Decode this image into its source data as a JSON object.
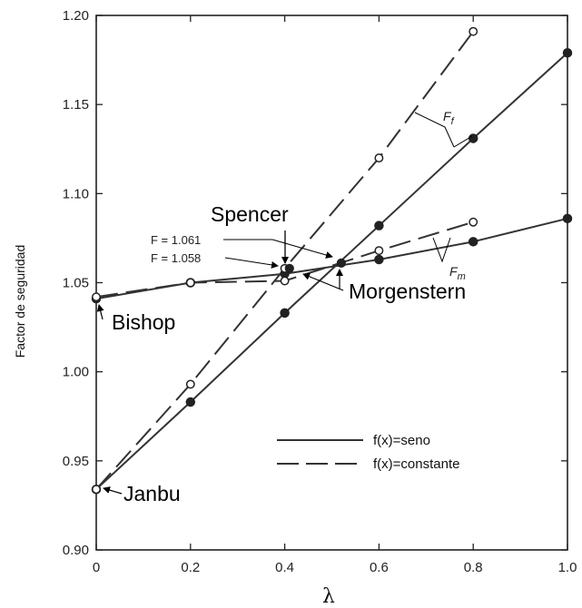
{
  "chart_data": {
    "type": "line",
    "title": "",
    "xlabel": "λ",
    "ylabel": "Factor de seguridad",
    "xlim": [
      0,
      1.0
    ],
    "ylim": [
      0.9,
      1.2
    ],
    "x_ticks": [
      "0",
      "0.2",
      "0.4",
      "0.6",
      "0.8",
      "1.0"
    ],
    "y_ticks": [
      "0.90",
      "0.95",
      "1.00",
      "1.05",
      "1.10",
      "1.15",
      "1.20"
    ],
    "grid": false,
    "legend_position": "lower-right",
    "series": [
      {
        "name": "f(x)=seno",
        "style": "solid",
        "marker": "filled-circle",
        "group": "Ff",
        "x": [
          0,
          0.2,
          0.4,
          0.6,
          0.8,
          1.0
        ],
        "y": [
          0.934,
          0.983,
          1.033,
          1.082,
          1.131,
          1.179
        ]
      },
      {
        "name": "f(x)=seno",
        "style": "solid",
        "marker": "filled-circle",
        "group": "Fm",
        "x": [
          0,
          0.2,
          0.4,
          0.6,
          0.8,
          1.0
        ],
        "y": [
          1.041,
          1.05,
          1.055,
          1.063,
          1.073,
          1.086
        ]
      },
      {
        "name": "f(x)=constante",
        "style": "dashed",
        "marker": "open-circle",
        "group": "Ff",
        "x": [
          0,
          0.2,
          0.4,
          0.6,
          0.8
        ],
        "y": [
          0.934,
          0.993,
          1.058,
          1.12,
          1.191
        ]
      },
      {
        "name": "f(x)=constante",
        "style": "dashed",
        "marker": "open-circle",
        "group": "Fm",
        "x": [
          0,
          0.2,
          0.4,
          0.6,
          0.8
        ],
        "y": [
          1.042,
          1.05,
          1.051,
          1.068,
          1.084
        ]
      }
    ],
    "intersection_points": [
      {
        "x": 0.41,
        "y": 1.058
      },
      {
        "x": 0.52,
        "y": 1.061
      }
    ],
    "annotations": {
      "spencer": "Spencer",
      "morgenstern": "Morgenstern",
      "bishop": "Bishop",
      "janbu": "Janbu",
      "f1061": "F = 1.061",
      "f1058": "F = 1.058",
      "ff_base": "F",
      "ff_sub": "f",
      "fm_base": "F",
      "fm_sub": "m"
    },
    "legend": [
      {
        "label": "f(x)=seno",
        "style": "solid"
      },
      {
        "label": "f(x)=constante",
        "style": "dashed"
      }
    ]
  }
}
